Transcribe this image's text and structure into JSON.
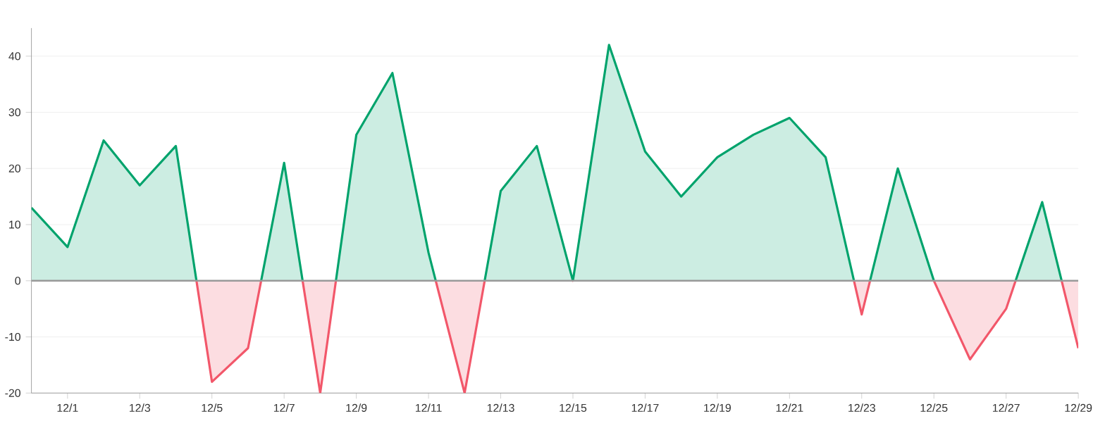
{
  "chart_data": {
    "type": "area",
    "categories": [
      null,
      "12/1",
      null,
      "12/3",
      null,
      "12/5",
      null,
      "12/7",
      null,
      "12/9",
      null,
      "12/11",
      null,
      "12/13",
      null,
      "12/15",
      null,
      "12/17",
      null,
      "12/19",
      null,
      "12/21",
      null,
      "12/23",
      null,
      "12/25",
      null,
      "12/27",
      null,
      "12/29"
    ],
    "values": [
      13,
      6,
      25,
      17,
      24,
      -18,
      -12,
      21,
      -20,
      26,
      37,
      5,
      -20,
      16,
      24,
      0,
      42,
      23,
      15,
      22,
      26,
      29,
      22,
      -6,
      20,
      0,
      -14,
      -5,
      14,
      -12
    ],
    "colors": [
      "#00a36c",
      "#00a36c",
      "#00a36c",
      "#00a36c",
      "#00a36c",
      "#f2576a",
      "#f2576a",
      "#00a36c",
      "#f2576a",
      "#00a36c",
      "#00a36c",
      "#00a36c",
      "#f2576a",
      "#00a36c",
      "#00a36c",
      "#00a36c",
      "#00a36c",
      "#00a36c",
      "#00a36c",
      "#00a36c",
      "#00a36c",
      "#00a36c",
      "#00a36c",
      "#f2576a",
      "#00a36c",
      "#00a36c",
      "#f2576a",
      "#f2576a",
      "#00a36c",
      "#f2576a"
    ],
    "ylim": [
      -20,
      45
    ],
    "yticks": [
      -20,
      -10,
      0,
      10,
      20,
      30,
      40
    ],
    "grid": "y",
    "ref_lines": [
      {
        "axis": "y",
        "value": 0,
        "color": "#999999"
      }
    ]
  }
}
